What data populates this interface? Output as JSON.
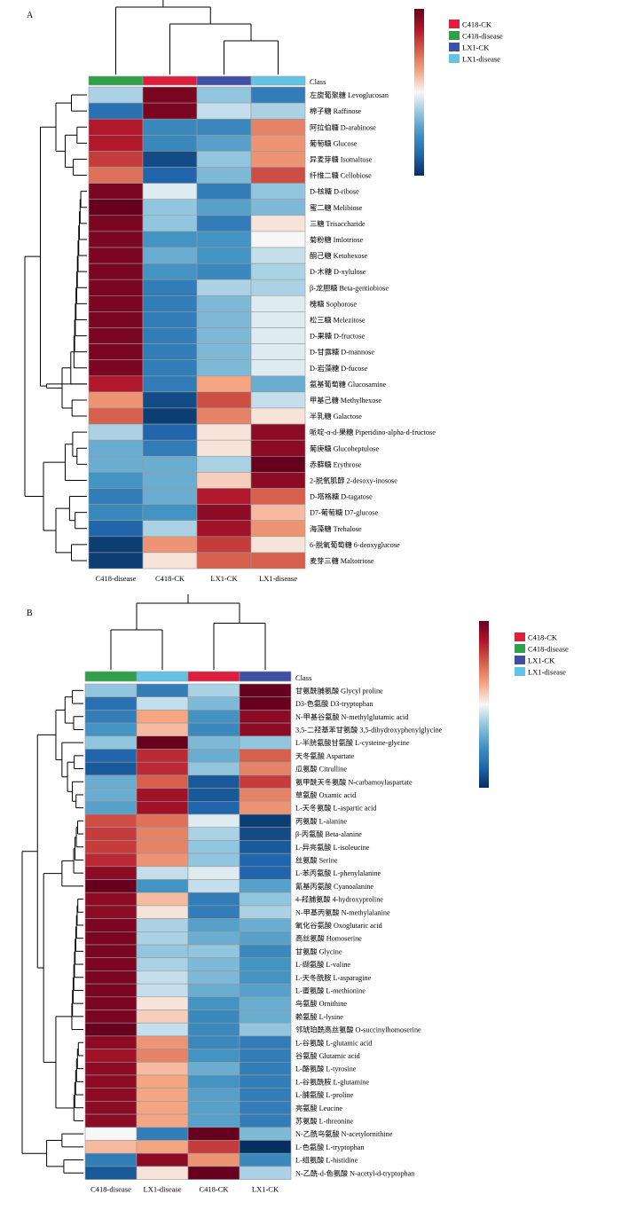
{
  "chart_data": [
    {
      "type": "heatmap",
      "panel_label": "A",
      "annotation_row_label": "Class",
      "columns": [
        "C418-disease",
        "C418-CK",
        "LX1-CK",
        "LX1-disease"
      ],
      "column_classes": [
        "C418-disease",
        "C418-CK",
        "LX1-CK",
        "LX1-disease"
      ],
      "legend": [
        {
          "name": "C418-CK",
          "color": "#dc1f3c"
        },
        {
          "name": "C418-disease",
          "color": "#30a04a"
        },
        {
          "name": "LX1-CK",
          "color": "#3f4fa3"
        },
        {
          "name": "LX1-disease",
          "color": "#63c3e3"
        }
      ],
      "rows": [
        "左旋葡聚糖 Levoglucosan",
        "棉子糖 Raffinose",
        "阿拉伯糖 D-arabinose",
        "葡萄糖 Glucose",
        "异麦芽糖 Isomaltose",
        "纤维二糖 Cellobiose",
        "D-核糖 D-ribose",
        "蜜二糖 Melibiose",
        "三糖 Trisaccharide",
        "菊粉糖 Imlotriose",
        "酮己糖 Ketohexose",
        "D-木糖 D-xylulose",
        "β-龙胆糖 Beta-gentiobiose",
        "槐糖 Sophorose",
        "松三糖 Melezitose",
        "D-果糖 D-fructose",
        "D-甘露糖 D-mannose",
        "D-岩藻糖 D-fucose",
        "氨基葡萄糖 Glucosamine",
        "甲基己糖 Methylhexose",
        "半乳糖 Galactose",
        "哌啶-α-d-果糖 Piperidino-alpha-d-fructose",
        "葡庚糖 Glucoheptulose",
        "赤藓糖 Erythrose",
        "2-脱氧肌醇 2-desoxy-inosose",
        "D-塔格糖 D-tagatose",
        "D7-葡萄糖 D7-glucose",
        "海藻糖 Trehalose",
        "6-脱氧葡萄糖 6-deoxyglucose",
        "麦芽三糖 Maltotriose"
      ],
      "values": [
        [
          -0.3,
          1.5,
          -0.4,
          -1.0
        ],
        [
          -1.1,
          1.5,
          -0.2,
          -0.3
        ],
        [
          1.2,
          -0.9,
          -0.9,
          0.6
        ],
        [
          1.2,
          -0.9,
          -0.7,
          0.5
        ],
        [
          1.0,
          -1.4,
          -0.4,
          0.5
        ],
        [
          0.7,
          -1.2,
          -0.5,
          0.9
        ],
        [
          1.5,
          -0.1,
          -1.0,
          -0.4
        ],
        [
          1.6,
          -0.4,
          -0.7,
          -0.5
        ],
        [
          1.5,
          -0.4,
          -1.0,
          0.1
        ],
        [
          1.5,
          -0.8,
          -0.8,
          0.0
        ],
        [
          1.5,
          -0.6,
          -0.8,
          -0.2
        ],
        [
          1.5,
          -0.8,
          -0.9,
          -0.3
        ],
        [
          1.5,
          -1.0,
          -0.3,
          -0.3
        ],
        [
          1.5,
          -1.0,
          -0.5,
          -0.1
        ],
        [
          1.5,
          -1.0,
          -0.5,
          -0.1
        ],
        [
          1.5,
          -1.0,
          -0.5,
          -0.1
        ],
        [
          1.5,
          -1.0,
          -0.5,
          -0.1
        ],
        [
          1.5,
          -1.0,
          -0.5,
          -0.1
        ],
        [
          1.2,
          -1.0,
          0.4,
          -0.6
        ],
        [
          0.5,
          -1.4,
          0.9,
          -0.2
        ],
        [
          0.8,
          -1.5,
          0.6,
          0.1
        ],
        [
          -0.3,
          -1.2,
          0.1,
          1.4
        ],
        [
          -0.6,
          -1.0,
          0.1,
          1.4
        ],
        [
          -0.6,
          -0.6,
          -0.3,
          1.7
        ],
        [
          -0.8,
          -0.6,
          0.2,
          1.4
        ],
        [
          -1.0,
          -0.6,
          1.2,
          0.8
        ],
        [
          -0.9,
          -0.8,
          1.4,
          0.3
        ],
        [
          -1.2,
          -0.3,
          1.3,
          0.5
        ],
        [
          -1.5,
          0.5,
          1.0,
          0.1
        ],
        [
          -1.5,
          0.1,
          0.8,
          0.8
        ]
      ],
      "color_scale": {
        "min": -1.6,
        "max": 1.6,
        "low": "#08306b",
        "mid": "#f7f7f7",
        "high": "#67000d"
      },
      "colorbar_ticks": []
    },
    {
      "type": "heatmap",
      "panel_label": "B",
      "annotation_row_label": "Class",
      "columns": [
        "C418-disease",
        "LX1-disease",
        "C418-CK",
        "LX1-CK"
      ],
      "column_classes": [
        "C418-disease",
        "LX1-disease",
        "C418-CK",
        "LX1-CK"
      ],
      "legend": [
        {
          "name": "C418-CK",
          "color": "#dc1f3c"
        },
        {
          "name": "C418-disease",
          "color": "#30a04a"
        },
        {
          "name": "LX1-CK",
          "color": "#3f4fa3"
        },
        {
          "name": "LX1-disease",
          "color": "#63c3e3"
        }
      ],
      "rows": [
        "甘氨酰脯氨酸 Glycyl proline",
        "D3-色氨酸 D3-tryptophan",
        "N-甲基谷氨酸 N-methylglutamic acid",
        "3,5-二羟基苯甘氨酸 3,5-dihydroxyphenylglycine",
        "L-半胱氨酸甘氨酸 L-cysteine-glycine",
        "天冬氨酸 Aspartate",
        "瓜氨酸 Citrulline",
        "氨甲酰天冬氨酸 N-carbamoylaspartate",
        "草氨酸 Oxamic acid",
        "L-天冬氨酸 L-aspartic acid",
        "丙氨酸 L-alanine",
        "β-丙氨酸 Beta-alanine",
        "L-异亮氨酸 L-isoleucine",
        "丝氨酸 Serine",
        "L-苯丙氨酸 L-phenylalanine",
        "氰基丙氨酸 Cyanoalanine",
        "4-羟脯氨酸 4-hydroxyproline",
        "N-甲基丙氨酸 N-methylalanine",
        "氧化谷氨酸 Oxoglutaric acid",
        "高丝氨酸 Homoserine",
        "甘氨酸 Glycine",
        "L-缬氨酸 L-valine",
        "L-天冬酰胺 L-asparagine",
        "L-蛋氨酸 L-methionine",
        "鸟氨酸 Ornithine",
        "赖氨酸 L-lysine",
        "邻琥珀酰高丝氨酸 O-succinylhomoserine",
        "L-谷氨酸 L-glutamic acid",
        "谷氨酸 Glutamic acid",
        "L-酪氨酸 L-tyrosine",
        "L-谷氨酰胺 L-glutamine",
        "L-脯氨酸 L-proline",
        "亮氨酸 Leucine",
        "苏氨酸 L-threonine",
        "N-乙酰鸟氨酸 N-acetylornithine",
        "L-色氨酸 L-tryptophan",
        "L-组氨酸 L-histidine",
        "N-乙酰-d-色氨酸 N-acetyl-d-tryptophan"
      ],
      "values": [
        [
          -0.4,
          -1.0,
          -0.3,
          1.6
        ],
        [
          -1.1,
          -0.2,
          -0.5,
          1.6
        ],
        [
          -1.0,
          0.4,
          -0.8,
          1.4
        ],
        [
          -0.8,
          0.3,
          -0.9,
          1.4
        ],
        [
          -0.4,
          1.6,
          -0.5,
          -0.4
        ],
        [
          -1.2,
          1.1,
          -0.6,
          0.8
        ],
        [
          -1.3,
          1.1,
          -0.4,
          0.6
        ],
        [
          -0.6,
          0.8,
          -1.3,
          1.0
        ],
        [
          -0.6,
          1.3,
          -1.3,
          0.6
        ],
        [
          -0.7,
          1.3,
          -1.2,
          0.5
        ],
        [
          0.9,
          0.7,
          -0.1,
          -1.5
        ],
        [
          1.0,
          0.6,
          -0.3,
          -1.4
        ],
        [
          1.0,
          0.6,
          -0.4,
          -1.3
        ],
        [
          1.1,
          0.5,
          -0.4,
          -1.2
        ],
        [
          1.4,
          -0.2,
          -0.1,
          -1.2
        ],
        [
          1.6,
          -0.8,
          -0.2,
          -0.7
        ],
        [
          1.4,
          0.3,
          -1.0,
          -0.4
        ],
        [
          1.4,
          0.1,
          -1.0,
          -0.3
        ],
        [
          1.5,
          -0.3,
          -0.7,
          -0.6
        ],
        [
          1.5,
          -0.3,
          -0.6,
          -0.7
        ],
        [
          1.5,
          -0.4,
          -0.4,
          -0.9
        ],
        [
          1.5,
          -0.3,
          -0.5,
          -0.8
        ],
        [
          1.5,
          -0.2,
          -0.5,
          -0.8
        ],
        [
          1.5,
          -0.2,
          -0.6,
          -0.7
        ],
        [
          1.5,
          0.1,
          -0.8,
          -0.6
        ],
        [
          1.5,
          0.2,
          -0.9,
          -0.6
        ],
        [
          1.6,
          -0.2,
          -0.9,
          -0.4
        ],
        [
          1.4,
          0.5,
          -0.9,
          -1.0
        ],
        [
          1.3,
          0.6,
          -0.8,
          -1.0
        ],
        [
          1.4,
          0.3,
          -0.6,
          -1.0
        ],
        [
          1.4,
          0.4,
          -0.8,
          -1.0
        ],
        [
          1.4,
          0.4,
          -0.7,
          -1.0
        ],
        [
          1.4,
          0.4,
          -0.7,
          -1.0
        ],
        [
          1.4,
          0.4,
          -0.7,
          -1.0
        ],
        [
          0.0,
          -1.0,
          1.6,
          -0.5
        ],
        [
          0.3,
          0.4,
          1.0,
          -1.6
        ],
        [
          -1.0,
          1.4,
          0.5,
          -0.9
        ],
        [
          -1.3,
          0.1,
          1.6,
          -0.3
        ]
      ],
      "color_scale": {
        "min": -1.6,
        "max": 1.6,
        "low": "#08306b",
        "mid": "#f7f7f7",
        "high": "#67000d"
      },
      "colorbar_ticks": []
    }
  ]
}
